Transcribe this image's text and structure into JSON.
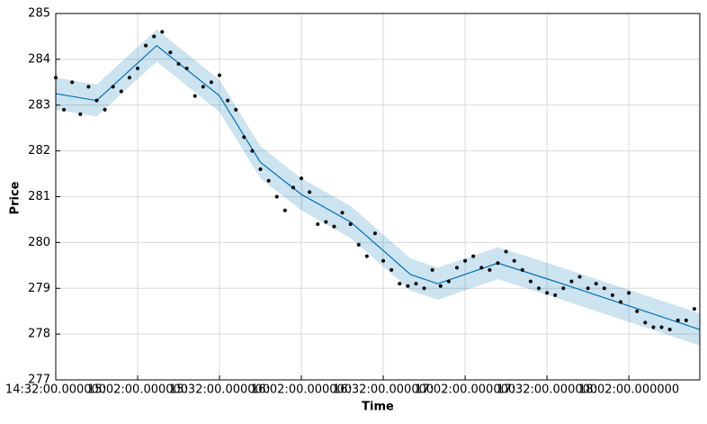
{
  "chart_data": {
    "type": "scatter",
    "x_label": "Time",
    "y_label": "Price",
    "x": [
      "14:32",
      "14:35",
      "14:38",
      "14:41",
      "14:44",
      "14:47",
      "14:50",
      "14:53",
      "14:56",
      "14:59",
      "15:02",
      "15:05",
      "15:08",
      "15:11",
      "15:14",
      "15:17",
      "15:20",
      "15:23",
      "15:26",
      "15:29",
      "15:32",
      "15:35",
      "15:38",
      "15:41",
      "15:44",
      "15:47",
      "15:50",
      "15:53",
      "15:56",
      "15:59",
      "16:02",
      "16:05",
      "16:08",
      "16:11",
      "16:14",
      "16:17",
      "16:20",
      "16:23",
      "16:26",
      "16:29",
      "16:32",
      "16:35",
      "16:38",
      "16:41",
      "16:44",
      "16:47",
      "16:50",
      "16:53",
      "16:56",
      "16:59",
      "17:02",
      "17:05",
      "17:08",
      "17:11",
      "17:14",
      "17:17",
      "17:20",
      "17:23",
      "17:26",
      "17:29",
      "17:32",
      "17:35",
      "17:38",
      "17:41",
      "17:44",
      "17:47",
      "17:50",
      "17:53",
      "17:56",
      "17:59",
      "18:02",
      "18:05",
      "18:08",
      "18:11",
      "18:14",
      "18:17",
      "18:20",
      "18:23",
      "18:26"
    ],
    "values": [
      283.6,
      282.9,
      283.5,
      282.8,
      283.4,
      283.1,
      282.9,
      283.4,
      283.3,
      283.6,
      283.8,
      284.3,
      284.5,
      284.6,
      284.15,
      283.9,
      283.8,
      283.2,
      283.4,
      283.5,
      283.65,
      283.1,
      282.9,
      282.3,
      282.0,
      281.6,
      281.35,
      281.0,
      280.7,
      281.2,
      281.4,
      281.1,
      280.4,
      280.45,
      280.35,
      280.65,
      280.4,
      279.95,
      279.7,
      280.2,
      279.6,
      279.4,
      279.1,
      279.05,
      279.1,
      279.0,
      279.4,
      279.05,
      279.15,
      279.45,
      279.6,
      279.7,
      279.45,
      279.4,
      279.55,
      279.8,
      279.6,
      279.4,
      279.15,
      279.0,
      278.9,
      278.85,
      279.0,
      279.15,
      279.25,
      279.0,
      279.1,
      279.0,
      278.85,
      278.7,
      278.9,
      278.5,
      278.25,
      278.15,
      278.15,
      278.1,
      278.3,
      278.3,
      278.55
    ],
    "color": "#000000",
    "forecast": {
      "color": "#0072B2",
      "x": [
        "14:32",
        "14:47",
        "15:09",
        "15:32",
        "15:47",
        "16:02",
        "16:20",
        "16:42",
        "16:52",
        "17:14",
        "17:35",
        "18:28"
      ],
      "values": [
        283.25,
        283.1,
        284.3,
        283.2,
        281.75,
        281.05,
        280.45,
        279.3,
        279.1,
        279.55,
        279.15,
        278.1
      ],
      "lower": [
        282.9,
        282.75,
        283.95,
        282.85,
        281.4,
        280.7,
        280.1,
        278.95,
        278.75,
        279.2,
        278.8,
        277.75
      ],
      "upper": [
        283.6,
        283.45,
        284.65,
        283.55,
        282.1,
        281.4,
        280.8,
        279.65,
        279.45,
        279.9,
        279.5,
        278.45
      ]
    },
    "xlim": [
      "14:32",
      "18:28"
    ],
    "xticks": [
      {
        "value": "14:32",
        "label": "14:32:00.000000"
      },
      {
        "value": "15:02",
        "label": "15:02:00.000000"
      },
      {
        "value": "15:32",
        "label": "15:32:00.000000"
      },
      {
        "value": "16:02",
        "label": "16:02:00.000000"
      },
      {
        "value": "16:32",
        "label": "16:32:00.000000"
      },
      {
        "value": "17:02",
        "label": "17:02:00.000000"
      },
      {
        "value": "17:32",
        "label": "17:32:00.000000"
      },
      {
        "value": "18:02",
        "label": "18:02:00.000000"
      }
    ],
    "ylim": [
      277,
      285
    ],
    "yticks": [
      277,
      278,
      279,
      280,
      281,
      282,
      283,
      284,
      285
    ],
    "grid": true
  }
}
